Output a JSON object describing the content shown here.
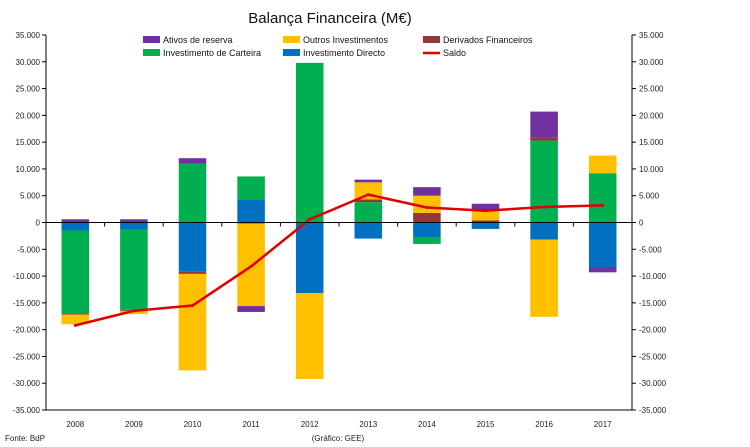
{
  "chart_data": {
    "type": "bar",
    "stacked": true,
    "title": "Balança Financeira (M€)",
    "categories": [
      "2008",
      "2009",
      "2010",
      "2011",
      "2012",
      "2013",
      "2014",
      "2015",
      "2016",
      "2017"
    ],
    "ylim": [
      -35000,
      35000
    ],
    "y_ticks": [
      35000,
      30000,
      25000,
      20000,
      15000,
      10000,
      5000,
      0,
      -5000,
      -10000,
      -15000,
      -20000,
      -25000,
      -30000,
      -35000
    ],
    "y_tick_labels": [
      "35.000",
      "30.000",
      "25.000",
      "20.000",
      "15.000",
      "10.000",
      "5.000",
      "0",
      "-5.000",
      "-10.000",
      "-15.000",
      "-20.000",
      "-25.000",
      "-30.000",
      "-35.000"
    ],
    "y_tick_labels_right": [
      "35.000",
      "30.000",
      "25.000",
      "20.000",
      "15.000",
      "10.000",
      "5.000",
      "0",
      "-5.000",
      "-10.000",
      "-15.000",
      "-20.000",
      "-25.000",
      "-30.000",
      "-35.000"
    ],
    "series": [
      {
        "name": "Investimento Directo",
        "color": "#0070C0",
        "values": [
          -1500,
          -1300,
          -9200,
          4200,
          -13200,
          -3000,
          -2700,
          -1200,
          -3200,
          -8400
        ]
      },
      {
        "name": "Investimento de Carteira",
        "color": "#00B050",
        "values": [
          -15500,
          -15000,
          11000,
          4400,
          29800,
          3800,
          -1300,
          0,
          15300,
          9200
        ]
      },
      {
        "name": "Derivados Financeiros",
        "color": "#953735",
        "values": [
          -200,
          -200,
          -400,
          -200,
          0,
          500,
          1800,
          400,
          500,
          0
        ]
      },
      {
        "name": "Outros Investimentos",
        "color": "#FFC000",
        "values": [
          -1800,
          -600,
          -18000,
          -15400,
          -16000,
          3200,
          3200,
          1900,
          -14400,
          3300
        ]
      },
      {
        "name": "Ativos de reserva",
        "color": "#7030A0",
        "values": [
          600,
          600,
          1000,
          -1100,
          0,
          500,
          1600,
          1200,
          4900,
          -900
        ]
      }
    ],
    "line": {
      "name": "Saldo",
      "color": "#E00000",
      "values": [
        -19200,
        -16500,
        -15500,
        -8200,
        600,
        5200,
        2800,
        2200,
        2900,
        3200
      ]
    },
    "legend": {
      "placement": "top",
      "rows": [
        [
          "Ativos de reserva",
          "Outros Investimentos",
          "Derivados Financeiros"
        ],
        [
          "Investimento de Carteira",
          "Investimento Directo",
          "Saldo"
        ]
      ]
    },
    "source": "Fonte: BdP",
    "credit": "(Gráfico: GEE)"
  }
}
